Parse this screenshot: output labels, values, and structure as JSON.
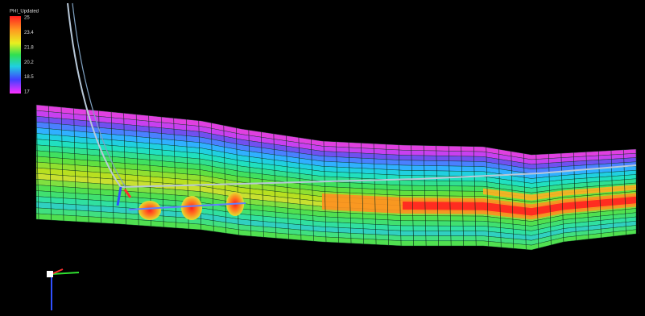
{
  "legend": {
    "title": "PHI_Updated",
    "ticks": [
      "25",
      "23.4",
      "21.8",
      "20.2",
      "18.5",
      "17"
    ]
  }
}
